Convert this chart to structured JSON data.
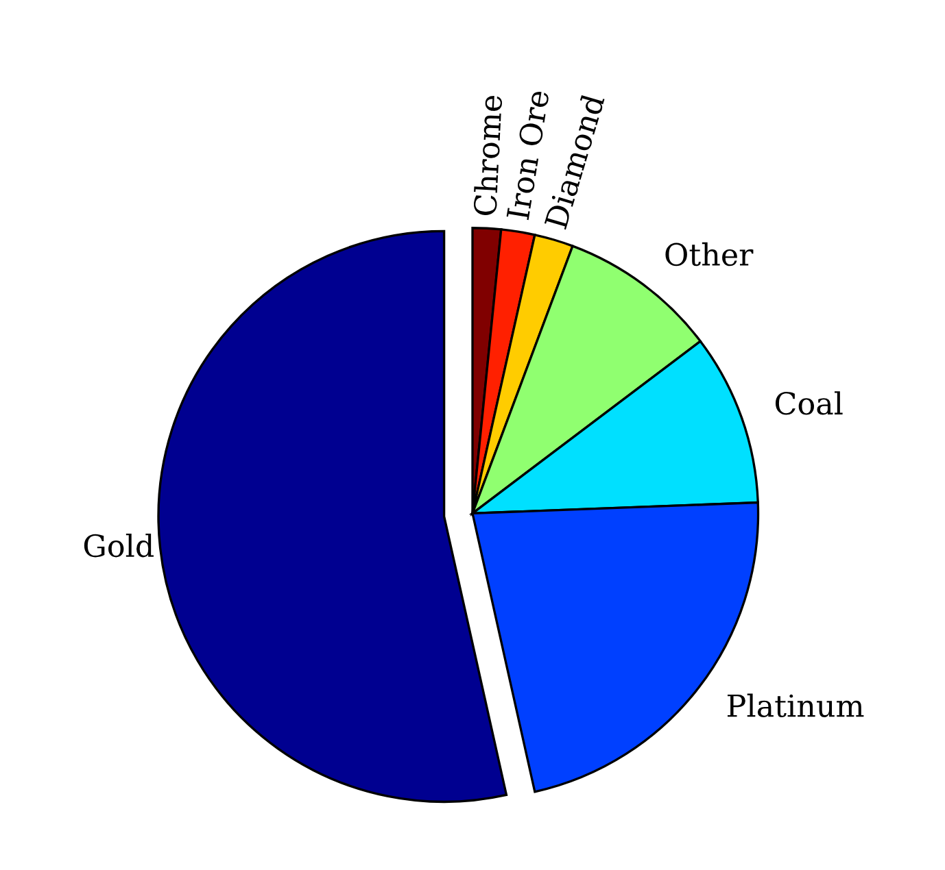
{
  "chart_data": {
    "type": "pie",
    "categories": [
      "Chrome",
      "Iron Ore",
      "Diamond",
      "Other",
      "Coal",
      "Platinum",
      "Gold"
    ],
    "values": [
      1.6,
      1.9,
      2.2,
      9.0,
      9.7,
      22.1,
      53.5
    ],
    "colors": [
      "#800000",
      "#ff2000",
      "#ffcc00",
      "#90ff70",
      "#00e0ff",
      "#0040ff",
      "#000090"
    ]
  }
}
